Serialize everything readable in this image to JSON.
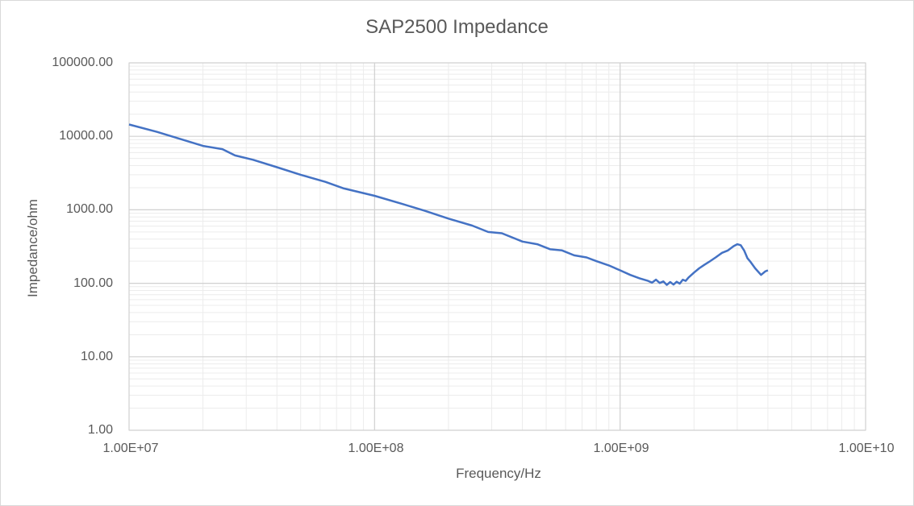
{
  "chart_data": {
    "type": "line",
    "title": "SAP2500 Impedance",
    "xlabel": "Frequency/Hz",
    "ylabel": "Impedance/ohm",
    "x_scale": "log",
    "y_scale": "log",
    "xlim": [
      10000000,
      10000000000
    ],
    "ylim": [
      1,
      100000
    ],
    "x_ticks": [
      "1.00E+07",
      "1.00E+08",
      "1.00E+09",
      "1.00E+10"
    ],
    "y_ticks": [
      "100000.00",
      "10000.00",
      "1000.00",
      "100.00",
      "10.00",
      "1.00"
    ],
    "grid": {
      "major": true,
      "minor": true
    },
    "legend": null,
    "line_color": "#4472c4",
    "series": [
      {
        "name": "Impedance",
        "x": [
          10000000.0,
          13000000.0,
          16000000.0,
          20000000.0,
          24000000.0,
          27000000.0,
          32000000.0,
          40000000.0,
          50000000.0,
          63000000.0,
          75000000.0,
          100000000.0,
          130000000.0,
          160000000.0,
          200000000.0,
          250000000.0,
          290000000.0,
          330000000.0,
          400000000.0,
          460000000.0,
          520000000.0,
          580000000.0,
          650000000.0,
          730000000.0,
          800000000.0,
          900000000.0,
          1000000000.0,
          1100000000.0,
          1200000000.0,
          1300000000.0,
          1350000000.0,
          1400000000.0,
          1450000000.0,
          1500000000.0,
          1550000000.0,
          1600000000.0,
          1650000000.0,
          1700000000.0,
          1750000000.0,
          1800000000.0,
          1850000000.0,
          1900000000.0,
          2000000000.0,
          2100000000.0,
          2200000000.0,
          2300000000.0,
          2450000000.0,
          2600000000.0,
          2750000000.0,
          2900000000.0,
          3000000000.0,
          3100000000.0,
          3200000000.0,
          3300000000.0,
          3400000000.0,
          3550000000.0,
          3750000000.0,
          3900000000.0,
          4000000000.0
        ],
        "values": [
          14500,
          11500,
          9300,
          7400,
          6700,
          5500,
          4800,
          3800,
          3000,
          2400,
          1950,
          1550,
          1200,
          970,
          760,
          610,
          500,
          480,
          370,
          340,
          290,
          280,
          240,
          225,
          200,
          175,
          150,
          130,
          117,
          108,
          102,
          112,
          101,
          106,
          95,
          104,
          96,
          105,
          99,
          112,
          108,
          120,
          140,
          160,
          178,
          195,
          225,
          260,
          280,
          320,
          340,
          330,
          280,
          220,
          195,
          160,
          130,
          145,
          150
        ]
      }
    ]
  },
  "chart_title": "SAP2500 Impedance",
  "axes": {
    "xlabel": "Frequency/Hz",
    "ylabel": "Impedance/ohm",
    "x_ticks": [
      "1.00E+07",
      "1.00E+08",
      "1.00E+09",
      "1.00E+10"
    ],
    "y_ticks": [
      "100000.00",
      "10000.00",
      "1000.00",
      "100.00",
      "10.00",
      "1.00"
    ]
  }
}
